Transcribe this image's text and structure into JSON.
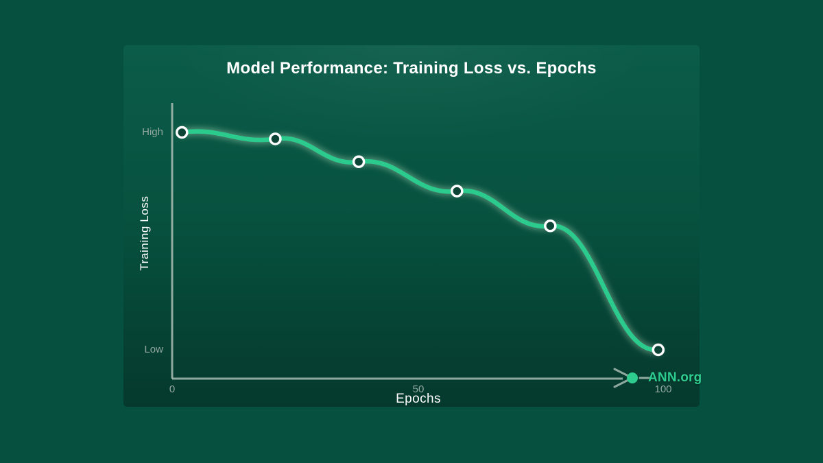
{
  "chart": {
    "title": "Model Performance: Training Loss vs. Epochs",
    "xlabel": "Epochs",
    "ylabel": "Training Loss",
    "ticks": {
      "x0": "0",
      "x50": "50",
      "x100": "100",
      "yHigh": "High",
      "yLow": "Low"
    },
    "brand": "ANN.org"
  },
  "colors": {
    "outer_background": "#065040",
    "panel_top": "#0b5c49",
    "panel_bottom": "#05392d",
    "line": "#2bcb8e",
    "line_glow": "#dcffd8",
    "marker_stroke": "#ffffff",
    "marker_fill": "#0c4536",
    "axis": "#a9bcb3",
    "tick_text": "#92a8a0",
    "title_text": "#ffffff",
    "brand_green": "#2ecc8f"
  },
  "chart_data": {
    "type": "line",
    "title": "Model Performance: Training Loss vs. Epochs",
    "xlabel": "Epochs",
    "ylabel": "Training Loss",
    "x_ticks": [
      "0",
      "50",
      "100"
    ],
    "x_range": [
      0,
      100
    ],
    "y_tick_labels": [
      "High",
      "Low"
    ],
    "y_scale": "qualitative, High (1.0) at top to Low (0.0) at bottom",
    "grid": false,
    "legend": "none",
    "watermark": "ANN.org",
    "series": [
      {
        "name": "Training Loss",
        "style": "smooth wavy line with circular markers",
        "points": [
          {
            "x": 2,
            "y": 1.0
          },
          {
            "x": 21,
            "y": 0.97
          },
          {
            "x": 38,
            "y": 0.865
          },
          {
            "x": 58,
            "y": 0.73
          },
          {
            "x": 77,
            "y": 0.57
          },
          {
            "x": 99,
            "y": 0.0
          }
        ]
      }
    ]
  }
}
